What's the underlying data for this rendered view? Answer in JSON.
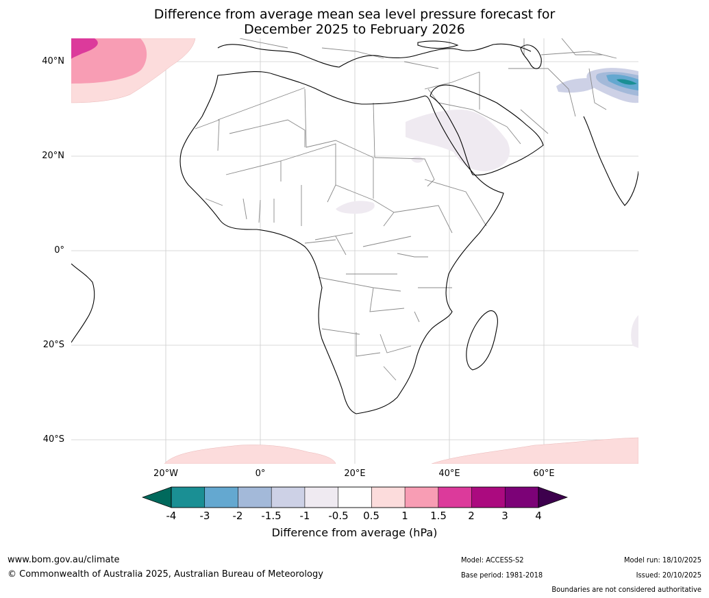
{
  "title": "Difference from average mean sea level pressure forecast for\nDecember 2025 to February 2026",
  "axes": {
    "lat_labels": [
      "40°N",
      "20°N",
      "0°",
      "20°S",
      "40°S"
    ],
    "lat_values": [
      40,
      20,
      0,
      -20,
      -40
    ],
    "lon_labels": [
      "20°W",
      "0°",
      "20°E",
      "40°E",
      "60°E"
    ],
    "lon_values": [
      -20,
      0,
      20,
      40,
      60
    ],
    "lat_range": [
      -45,
      45
    ],
    "lon_range": [
      -40,
      80
    ]
  },
  "colorbar": {
    "tick_labels": [
      "-4",
      "-3",
      "-2",
      "-1.5",
      "-1",
      "-0.5",
      "0.5",
      "1",
      "1.5",
      "2",
      "3",
      "4"
    ],
    "bin_colors": [
      "#1a8f94",
      "#64a8d0",
      "#a3b9d9",
      "#cdd1e6",
      "#efeaf1",
      "#ffffff",
      "#fcdcdc",
      "#f89db4",
      "#dc3a9b",
      "#ab0a7f",
      "#7c0277"
    ],
    "under_color": "#00695c",
    "over_color": "#3d004d",
    "label": "Difference from average (hPa)"
  },
  "map_layers": [
    {
      "name": "pink-high-north-atlantic",
      "category": "1 to 1.5"
    },
    {
      "name": "magenta-high-north-atlantic",
      "category": "1.5 to 2"
    },
    {
      "name": "light-pink-south-atlantic",
      "category": "0.5 to 1"
    },
    {
      "name": "light-lilac-arabia",
      "category": "-1 to -0.5"
    },
    {
      "name": "blue-low-himalaya",
      "category": "-4 to -1.5"
    }
  ],
  "footer": {
    "website": "www.bom.gov.au/climate",
    "copyright": "© Commonwealth of Australia 2025, Australian Bureau of Meteorology",
    "model": "Model: ACCESS-S2",
    "base_period": "Base period: 1981-2018",
    "model_run": "Model run: 18/10/2025",
    "issued": "Issued: 20/10/2025",
    "disclaimer": "Boundaries are not considered authoritative"
  }
}
